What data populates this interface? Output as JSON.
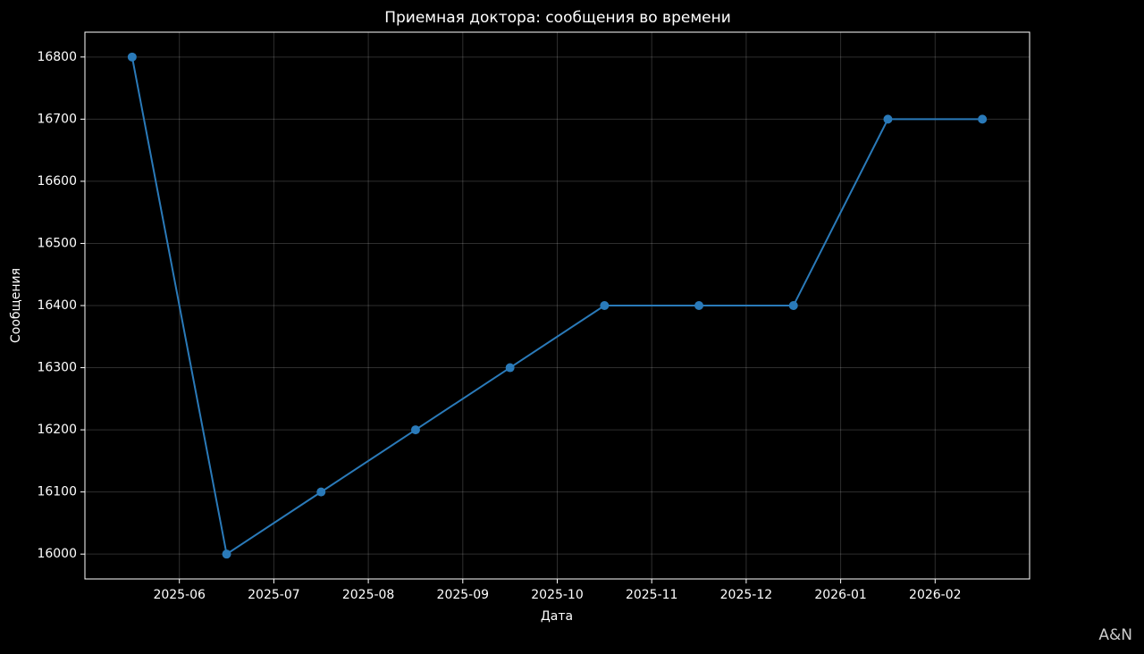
{
  "chart_data": {
    "type": "line",
    "title": "Приемная доктора: сообщения во времени",
    "x_label": "Дата",
    "y_label": "Сообщения",
    "watermark": "A&N",
    "x": [
      "2025-05",
      "2025-06",
      "2025-07",
      "2025-08",
      "2025-09",
      "2025-10",
      "2025-11",
      "2025-12",
      "2026-01",
      "2026-02"
    ],
    "series": [
      {
        "name": "Сообщения",
        "color": "#2a7ab9",
        "values": [
          16800,
          16000,
          16100,
          16200,
          16300,
          16400,
          16400,
          16400,
          16700,
          16700
        ]
      }
    ],
    "xlim": [
      "2025-05",
      "2026-03"
    ],
    "xticks": [
      "2025-06",
      "2025-07",
      "2025-08",
      "2025-09",
      "2025-10",
      "2025-11",
      "2025-12",
      "2026-01",
      "2026-02"
    ],
    "ylim": [
      15960,
      16840
    ],
    "yticks": [
      16000,
      16100,
      16200,
      16300,
      16400,
      16500,
      16600,
      16700,
      16800
    ],
    "grid": true
  }
}
